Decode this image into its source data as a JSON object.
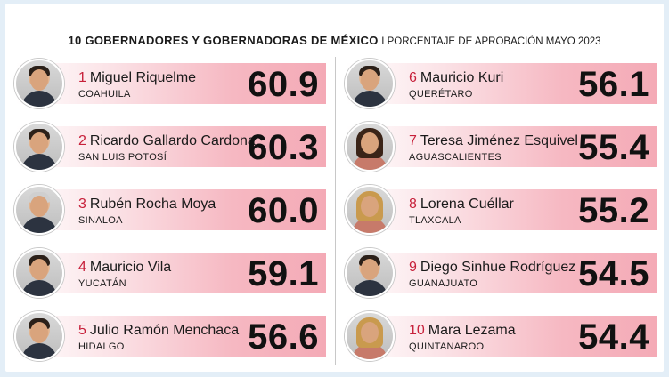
{
  "title": "10 GOBERNADORES Y GOBERNADORAS DE MÉXICO",
  "subtitle": "I PORCENTAJE DE APROBACIÓN MAYO 2023",
  "chart_data": {
    "type": "bar",
    "title": "10 GOBERNADORES Y GOBERNADORAS DE MÉXICO",
    "subtitle": "I PORCENTAJE DE APROBACIÓN MAYO 2023",
    "categories": [
      "Miguel Riquelme",
      "Ricardo Gallardo Cardona",
      "Rubén Rocha Moya",
      "Mauricio Vila",
      "Julio Ramón Menchaca",
      "Mauricio Kuri",
      "Teresa Jiménez Esquivel",
      "Lorena Cuéllar",
      "Diego Sinhue Rodríguez",
      "Mara Lezama"
    ],
    "values": [
      60.9,
      60.3,
      60.0,
      59.1,
      56.6,
      56.1,
      55.4,
      55.2,
      54.5,
      54.4
    ],
    "items": [
      {
        "rank": "1",
        "name": "Miguel Riquelme",
        "state": "COAHUILA",
        "value": "60.9",
        "hair": "short"
      },
      {
        "rank": "2",
        "name": "Ricardo Gallardo Cardona",
        "state": "SAN LUIS POTOSÍ",
        "value": "60.3",
        "hair": "short"
      },
      {
        "rank": "3",
        "name": "Rubén Rocha Moya",
        "state": "SINALOA",
        "value": "60.0",
        "hair": "grey"
      },
      {
        "rank": "4",
        "name": "Mauricio Vila",
        "state": "YUCATÁN",
        "value": "59.1",
        "hair": "short"
      },
      {
        "rank": "5",
        "name": "Julio Ramón Menchaca",
        "state": "HIDALGO",
        "value": "56.6",
        "hair": "short"
      },
      {
        "rank": "6",
        "name": "Mauricio Kuri",
        "state": "QUERÉTARO",
        "value": "56.1",
        "hair": "short"
      },
      {
        "rank": "7",
        "name": "Teresa Jiménez Esquivel",
        "state": "AGUASCALIENTES",
        "value": "55.4",
        "hair": "long"
      },
      {
        "rank": "8",
        "name": "Lorena Cuéllar",
        "state": "TLAXCALA",
        "value": "55.2",
        "hair": "blonde"
      },
      {
        "rank": "9",
        "name": "Diego Sinhue Rodríguez",
        "state": "GUANAJUATO",
        "value": "54.5",
        "hair": "short"
      },
      {
        "rank": "10",
        "name": "Mara Lezama",
        "state": "QUINTANAROO",
        "value": "54.4",
        "hair": "blonde"
      }
    ],
    "colors": {
      "rank": "#c7203a",
      "bar_end": "#f4aab6",
      "bar_start": "#ffffff"
    }
  }
}
